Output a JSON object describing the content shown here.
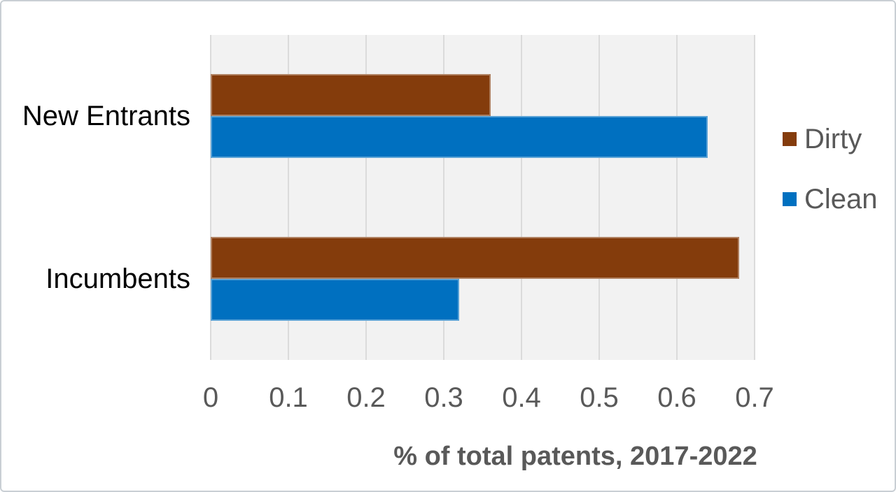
{
  "chart_data": {
    "type": "bar",
    "orientation": "horizontal",
    "categories": [
      "New Entrants",
      "Incumbents"
    ],
    "series": [
      {
        "name": "Dirty",
        "color": "#843C0C",
        "values": [
          0.36,
          0.68
        ]
      },
      {
        "name": "Clean",
        "color": "#0070C0",
        "values": [
          0.64,
          0.32
        ]
      }
    ],
    "xlabel": "% of total patents, 2017-2022",
    "xlim": [
      0,
      0.7
    ],
    "xticks": [
      0,
      0.1,
      0.2,
      0.3,
      0.4,
      0.5,
      0.6,
      0.7
    ],
    "xtick_labels": [
      "0",
      "0.1",
      "0.2",
      "0.3",
      "0.4",
      "0.5",
      "0.6",
      "0.7"
    ],
    "grid": true,
    "legend_position": "right",
    "plot_bg": "#F2F2F2",
    "gridline_color": "#DBDBDB",
    "tick_text_color": "#595959",
    "category_text_color": "#000000",
    "axis_title_color": "#595959"
  }
}
